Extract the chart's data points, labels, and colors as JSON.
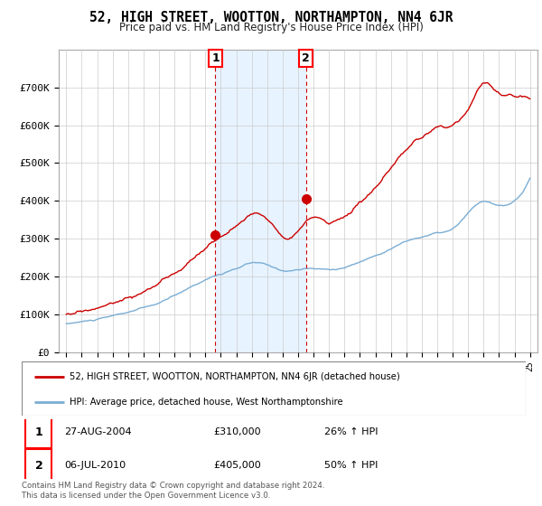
{
  "title": "52, HIGH STREET, WOOTTON, NORTHAMPTON, NN4 6JR",
  "subtitle": "Price paid vs. HM Land Registry's House Price Index (HPI)",
  "ylim": [
    0,
    800000
  ],
  "yticks": [
    0,
    100000,
    200000,
    300000,
    400000,
    500000,
    600000,
    700000
  ],
  "ytick_labels": [
    "£0",
    "£100K",
    "£200K",
    "£300K",
    "£400K",
    "£500K",
    "£600K",
    "£700K"
  ],
  "sale1_year": 2004.65,
  "sale1_price": 310000,
  "sale2_year": 2010.5,
  "sale2_price": 405000,
  "house_color": "#cc0000",
  "hpi_color": "#7aadd4",
  "shade_color": "#ddeeff",
  "vline_color": "#cc0000",
  "background_color": "#ffffff",
  "grid_color": "#cccccc",
  "legend1_text": "52, HIGH STREET, WOOTTON, NORTHAMPTON, NN4 6JR (detached house)",
  "legend2_text": "HPI: Average price, detached house, West Northamptonshire",
  "table_row1": [
    "1",
    "27-AUG-2004",
    "£310,000",
    "26% ↑ HPI"
  ],
  "table_row2": [
    "2",
    "06-JUL-2010",
    "£405,000",
    "50% ↑ HPI"
  ],
  "footer": "Contains HM Land Registry data © Crown copyright and database right 2024.\nThis data is licensed under the Open Government Licence v3.0."
}
